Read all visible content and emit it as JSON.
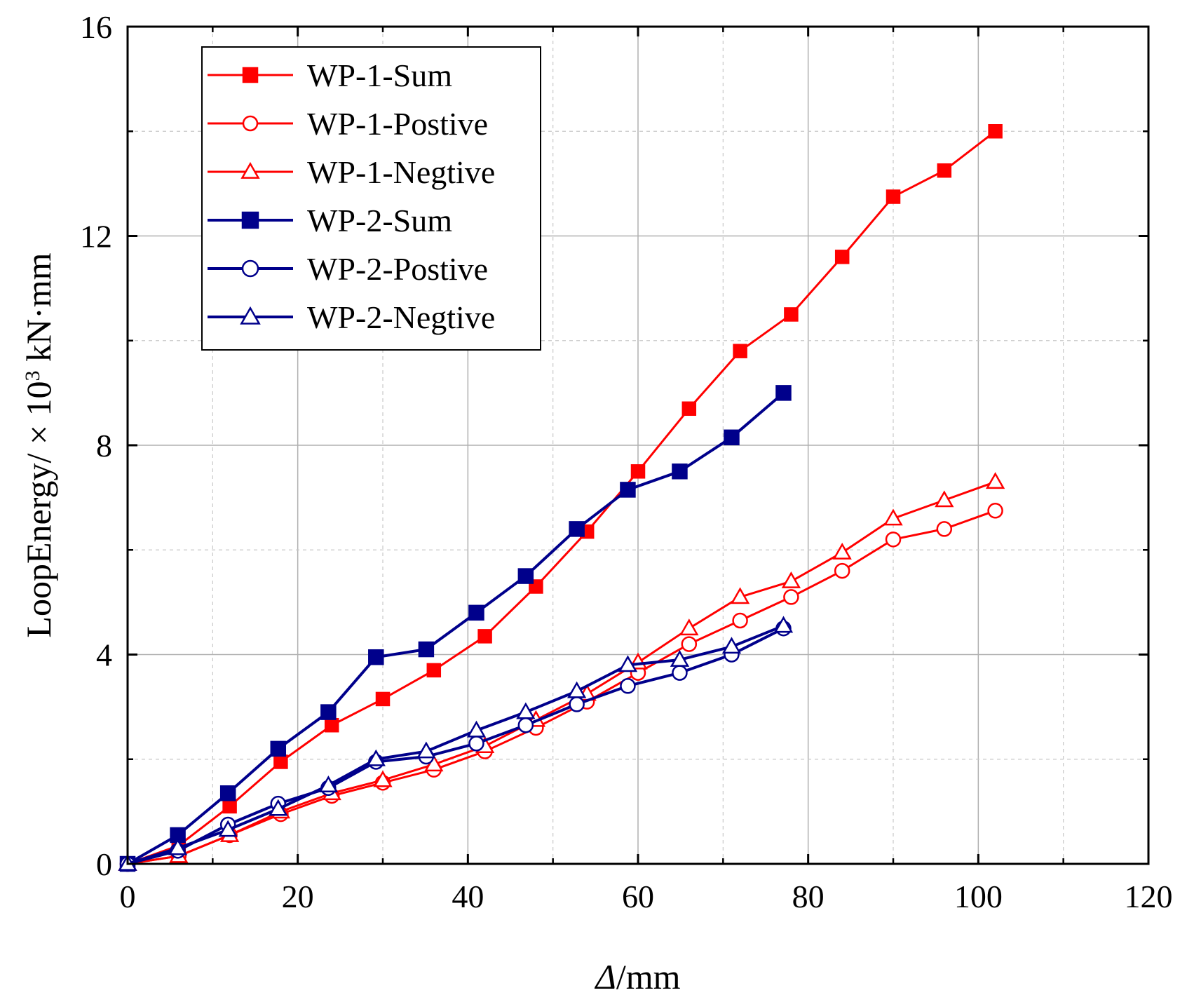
{
  "chart_data": {
    "type": "line",
    "xlabel_italic": "Δ",
    "xlabel_rest": "/mm",
    "ylabel_main": "LoopEnergy/ × 10",
    "ylabel_sup": "3",
    "ylabel_unit": " kN·mm",
    "xlim": [
      0,
      120
    ],
    "ylim": [
      0,
      16
    ],
    "xticks": [
      0,
      20,
      40,
      60,
      80,
      100,
      120
    ],
    "yticks": [
      0,
      4,
      8,
      12,
      16
    ],
    "grid": true,
    "legend_position": "top-left",
    "colors": {
      "wp1": "#ff0000",
      "wp2": "#00008b"
    },
    "series": [
      {
        "name": "WP-1-Sum",
        "color": "#ff0000",
        "marker": "square",
        "filled": true,
        "x": [
          0,
          6,
          12,
          18,
          24,
          30,
          36,
          42,
          48,
          54,
          60,
          66,
          72,
          78,
          84,
          90,
          96,
          102
        ],
        "y": [
          0.0,
          0.35,
          1.1,
          1.95,
          2.65,
          3.15,
          3.7,
          4.35,
          5.3,
          6.35,
          7.5,
          8.7,
          9.8,
          10.5,
          11.6,
          12.75,
          13.25,
          14.0
        ]
      },
      {
        "name": "WP-1-Postive",
        "color": "#ff0000",
        "marker": "circle",
        "filled": false,
        "x": [
          0,
          6,
          12,
          18,
          24,
          30,
          36,
          42,
          48,
          54,
          60,
          66,
          72,
          78,
          84,
          90,
          96,
          102
        ],
        "y": [
          0.0,
          0.15,
          0.55,
          0.95,
          1.3,
          1.55,
          1.8,
          2.15,
          2.6,
          3.1,
          3.65,
          4.2,
          4.65,
          5.1,
          5.6,
          6.2,
          6.4,
          6.75
        ]
      },
      {
        "name": "WP-1-Negtive",
        "color": "#ff0000",
        "marker": "triangle",
        "filled": false,
        "x": [
          0,
          6,
          12,
          18,
          24,
          30,
          36,
          42,
          48,
          54,
          60,
          66,
          72,
          78,
          84,
          90,
          96,
          102
        ],
        "y": [
          0.0,
          0.15,
          0.55,
          1.0,
          1.35,
          1.6,
          1.9,
          2.25,
          2.75,
          3.25,
          3.85,
          4.5,
          5.1,
          5.4,
          5.95,
          6.6,
          6.95,
          7.3
        ]
      },
      {
        "name": "WP-2-Sum",
        "color": "#00008b",
        "marker": "square",
        "filled": true,
        "x": [
          0,
          5.9,
          11.8,
          17.7,
          23.6,
          29.2,
          35.1,
          41.0,
          46.8,
          52.8,
          58.8,
          64.9,
          71.0,
          77.1
        ],
        "y": [
          0.0,
          0.55,
          1.35,
          2.2,
          2.9,
          3.95,
          4.1,
          4.8,
          5.5,
          6.4,
          7.15,
          7.5,
          8.15,
          9.0
        ]
      },
      {
        "name": "WP-2-Postive",
        "color": "#00008b",
        "marker": "circle",
        "filled": false,
        "x": [
          0,
          5.9,
          11.8,
          17.7,
          23.6,
          29.2,
          35.1,
          41.0,
          46.8,
          52.8,
          58.8,
          64.9,
          71.0,
          77.1
        ],
        "y": [
          0.0,
          0.25,
          0.75,
          1.15,
          1.45,
          1.95,
          2.05,
          2.3,
          2.65,
          3.05,
          3.4,
          3.65,
          4.0,
          4.5
        ]
      },
      {
        "name": "WP-2-Negtive",
        "color": "#00008b",
        "marker": "triangle",
        "filled": false,
        "x": [
          0,
          5.9,
          11.8,
          17.7,
          23.6,
          29.2,
          35.1,
          41.0,
          46.8,
          52.8,
          58.8,
          64.9,
          71.0,
          77.1
        ],
        "y": [
          0.0,
          0.3,
          0.65,
          1.05,
          1.5,
          2.0,
          2.15,
          2.55,
          2.9,
          3.3,
          3.8,
          3.9,
          4.15,
          4.55
        ]
      }
    ]
  }
}
